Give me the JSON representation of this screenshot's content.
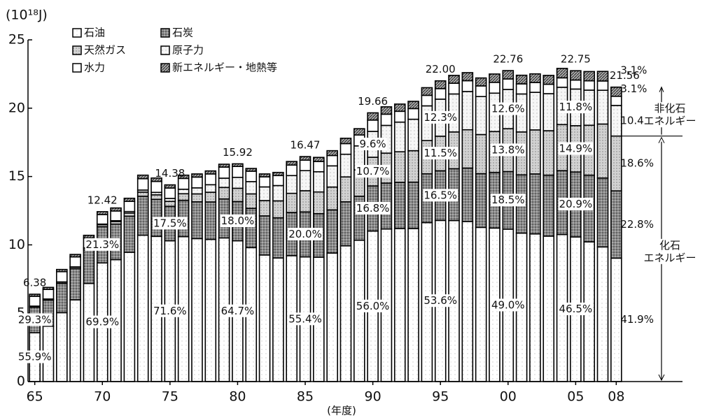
{
  "chart_data": {
    "type": "stacked_bar",
    "y_unit": "(10¹⁸J)",
    "x_label": "(年度)",
    "x": [
      1965,
      1966,
      1967,
      1968,
      1969,
      1970,
      1971,
      1972,
      1973,
      1974,
      1975,
      1976,
      1977,
      1978,
      1979,
      1980,
      1981,
      1982,
      1983,
      1984,
      1985,
      1986,
      1987,
      1988,
      1989,
      1990,
      1991,
      1992,
      1993,
      1994,
      1995,
      1996,
      1997,
      1998,
      1999,
      2000,
      2001,
      2002,
      2003,
      2004,
      2005,
      2006,
      2007,
      2008
    ],
    "xlim": [
      1964.5,
      2008.5
    ],
    "xticks": [
      {
        "value": 1965,
        "label": "65"
      },
      {
        "value": 1970,
        "label": "70"
      },
      {
        "value": 1975,
        "label": "75"
      },
      {
        "value": 1980,
        "label": "80"
      },
      {
        "value": 1985,
        "label": "85"
      },
      {
        "value": 1990,
        "label": "90"
      },
      {
        "value": 1995,
        "label": "95"
      },
      {
        "value": 2000,
        "label": "00"
      },
      {
        "value": 2005,
        "label": "05"
      },
      {
        "value": 2008,
        "label": "08"
      }
    ],
    "ylim": [
      0,
      25
    ],
    "yticks": [
      0,
      5,
      10,
      15,
      20,
      25
    ],
    "grid": false,
    "series": [
      {
        "name": "石油",
        "color": "#ffffff",
        "values": [
          3.57,
          4.05,
          5.04,
          5.98,
          7.18,
          8.68,
          8.92,
          9.46,
          10.71,
          10.62,
          10.3,
          10.6,
          10.46,
          10.4,
          10.51,
          10.3,
          9.8,
          9.26,
          9.04,
          9.21,
          9.12,
          9.1,
          9.4,
          9.93,
          10.34,
          11.01,
          11.16,
          11.19,
          11.19,
          11.63,
          11.79,
          11.78,
          11.71,
          11.28,
          11.23,
          11.15,
          10.86,
          10.8,
          10.64,
          10.76,
          10.58,
          10.22,
          9.85,
          9.03
        ]
      },
      {
        "name": "石炭",
        "color": "#7a7a7a",
        "values": [
          1.87,
          1.91,
          2.14,
          2.28,
          2.45,
          2.65,
          2.6,
          2.64,
          2.85,
          2.71,
          2.52,
          2.66,
          2.69,
          2.74,
          2.85,
          2.87,
          2.87,
          2.86,
          2.94,
          3.16,
          3.29,
          3.18,
          3.16,
          3.22,
          3.22,
          3.3,
          3.36,
          3.39,
          3.4,
          3.57,
          3.63,
          3.79,
          3.91,
          3.93,
          4.07,
          4.21,
          4.26,
          4.39,
          4.46,
          4.67,
          4.75,
          4.88,
          5.04,
          4.92
        ]
      },
      {
        "name": "天然ガス",
        "color": "#bdbdbd",
        "values": [
          0.08,
          0.08,
          0.1,
          0.11,
          0.13,
          0.15,
          0.19,
          0.23,
          0.3,
          0.33,
          0.36,
          0.48,
          0.58,
          0.71,
          0.84,
          0.97,
          1.06,
          1.12,
          1.24,
          1.4,
          1.55,
          1.59,
          1.67,
          1.82,
          1.92,
          2.1,
          2.19,
          2.23,
          2.3,
          2.43,
          2.53,
          2.69,
          2.8,
          2.86,
          2.99,
          3.14,
          3.14,
          3.22,
          3.25,
          3.37,
          3.39,
          3.65,
          3.95,
          4.01
        ]
      },
      {
        "name": "原子力",
        "color": "#f4f4f4",
        "values": [
          0,
          0,
          0.01,
          0.02,
          0.02,
          0.04,
          0.06,
          0.11,
          0.15,
          0.18,
          0.22,
          0.33,
          0.44,
          0.55,
          0.68,
          0.8,
          0.9,
          1.0,
          1.12,
          1.3,
          1.47,
          1.48,
          1.55,
          1.66,
          1.76,
          1.89,
          2.03,
          2.17,
          2.3,
          2.54,
          2.71,
          2.78,
          2.8,
          2.78,
          2.81,
          2.87,
          2.78,
          2.75,
          2.71,
          2.73,
          2.68,
          2.57,
          2.47,
          2.24
        ]
      },
      {
        "name": "水力",
        "color": "#ffffff",
        "values": [
          0.72,
          0.7,
          0.75,
          0.73,
          0.73,
          0.7,
          0.71,
          0.74,
          0.83,
          0.8,
          0.76,
          0.79,
          0.79,
          0.79,
          0.81,
          0.8,
          0.76,
          0.74,
          0.73,
          0.77,
          0.77,
          0.75,
          0.76,
          0.78,
          0.8,
          0.83,
          0.82,
          0.79,
          0.78,
          0.77,
          0.77,
          0.78,
          0.79,
          0.78,
          0.79,
          0.77,
          0.74,
          0.72,
          0.69,
          0.69,
          0.66,
          0.68,
          0.68,
          0.67
        ]
      },
      {
        "name": "新エネルギー・地熱等",
        "color": "#9a9a9a",
        "values": [
          0.15,
          0.15,
          0.16,
          0.18,
          0.19,
          0.21,
          0.22,
          0.23,
          0.26,
          0.25,
          0.23,
          0.24,
          0.23,
          0.22,
          0.21,
          0.19,
          0.2,
          0.21,
          0.23,
          0.26,
          0.26,
          0.3,
          0.35,
          0.39,
          0.46,
          0.53,
          0.54,
          0.53,
          0.53,
          0.56,
          0.57,
          0.58,
          0.59,
          0.58,
          0.61,
          0.61,
          0.63,
          0.63,
          0.65,
          0.69,
          0.68,
          0.68,
          0.7,
          0.67
        ]
      }
    ],
    "totals": [
      {
        "x": 1965,
        "value": 6.38,
        "label": "6.38"
      },
      {
        "x": 1970,
        "value": 12.42,
        "label": "12.42"
      },
      {
        "x": 1975,
        "value": 14.38,
        "label": "14.38"
      },
      {
        "x": 1980,
        "value": 15.92,
        "label": "15.92"
      },
      {
        "x": 1985,
        "value": 16.47,
        "label": "16.47"
      },
      {
        "x": 1990,
        "value": 19.66,
        "label": "19.66"
      },
      {
        "x": 1995,
        "value": 22,
        "label": "22.00"
      },
      {
        "x": 2000,
        "value": 22.76,
        "label": "22.76"
      },
      {
        "x": 2005,
        "value": 22.75,
        "label": "22.75"
      },
      {
        "x": 2008,
        "value": 21.56,
        "label": "21.56"
      }
    ],
    "share_labels": [
      {
        "x": 1965,
        "series": 0,
        "value": 55.9,
        "label": "55.9%"
      },
      {
        "x": 1965,
        "series": 1,
        "value": 29.3,
        "label": "29.3%"
      },
      {
        "x": 1970,
        "series": 0,
        "value": 69.9,
        "label": "69.9%"
      },
      {
        "x": 1970,
        "series": 1,
        "value": 21.3,
        "label": "21.3%"
      },
      {
        "x": 1975,
        "series": 0,
        "value": 71.6,
        "label": "71.6%"
      },
      {
        "x": 1975,
        "series": 1,
        "value": 17.5,
        "label": "17.5%"
      },
      {
        "x": 1980,
        "series": 0,
        "value": 64.7,
        "label": "64.7%"
      },
      {
        "x": 1980,
        "series": 1,
        "value": 18.0,
        "label": "18.0%"
      },
      {
        "x": 1985,
        "series": 0,
        "value": 55.4,
        "label": "55.4%"
      },
      {
        "x": 1985,
        "series": 1,
        "value": 20.0,
        "label": "20.0%"
      },
      {
        "x": 1990,
        "series": 0,
        "value": 56.0,
        "label": "56.0%"
      },
      {
        "x": 1990,
        "series": 1,
        "value": 16.8,
        "label": "16.8%"
      },
      {
        "x": 1990,
        "series": 2,
        "value": 10.7,
        "label": "10.7%"
      },
      {
        "x": 1990,
        "series": 3,
        "value": 9.6,
        "label": "9.6%"
      },
      {
        "x": 1995,
        "series": 0,
        "value": 53.6,
        "label": "53.6%"
      },
      {
        "x": 1995,
        "series": 1,
        "value": 16.5,
        "label": "16.5%"
      },
      {
        "x": 1995,
        "series": 2,
        "value": 11.5,
        "label": "11.5%"
      },
      {
        "x": 1995,
        "series": 3,
        "value": 12.3,
        "label": "12.3%"
      },
      {
        "x": 2000,
        "series": 0,
        "value": 49.0,
        "label": "49.0%"
      },
      {
        "x": 2000,
        "series": 1,
        "value": 18.5,
        "label": "18.5%"
      },
      {
        "x": 2000,
        "series": 2,
        "value": 13.8,
        "label": "13.8%"
      },
      {
        "x": 2000,
        "series": 3,
        "value": 12.6,
        "label": "12.6%"
      },
      {
        "x": 2005,
        "series": 0,
        "value": 46.5,
        "label": "46.5%"
      },
      {
        "x": 2005,
        "series": 1,
        "value": 20.9,
        "label": "20.9%"
      },
      {
        "x": 2005,
        "series": 2,
        "value": 14.9,
        "label": "14.9%"
      },
      {
        "x": 2005,
        "series": 3,
        "value": 11.8,
        "label": "11.8%"
      },
      {
        "x": 2008,
        "series": 0,
        "value": 41.9,
        "label": "41.9%"
      },
      {
        "x": 2008,
        "series": 1,
        "value": 22.8,
        "label": "22.8%"
      },
      {
        "x": 2008,
        "series": 2,
        "value": 18.6,
        "label": "18.6%"
      },
      {
        "x": 2008,
        "series": 3,
        "value": 10.4,
        "label": "10.4%"
      },
      {
        "x": 2008,
        "series": 4,
        "value": 3.1,
        "label": "3.1%"
      },
      {
        "x": 2008,
        "series": 5,
        "value": 3.1,
        "label": "3.1%"
      }
    ],
    "groups": [
      {
        "lines": [
          "非化石",
          "エネルギー"
        ]
      },
      {
        "lines": [
          "化石",
          "エネルギー"
        ]
      }
    ]
  }
}
